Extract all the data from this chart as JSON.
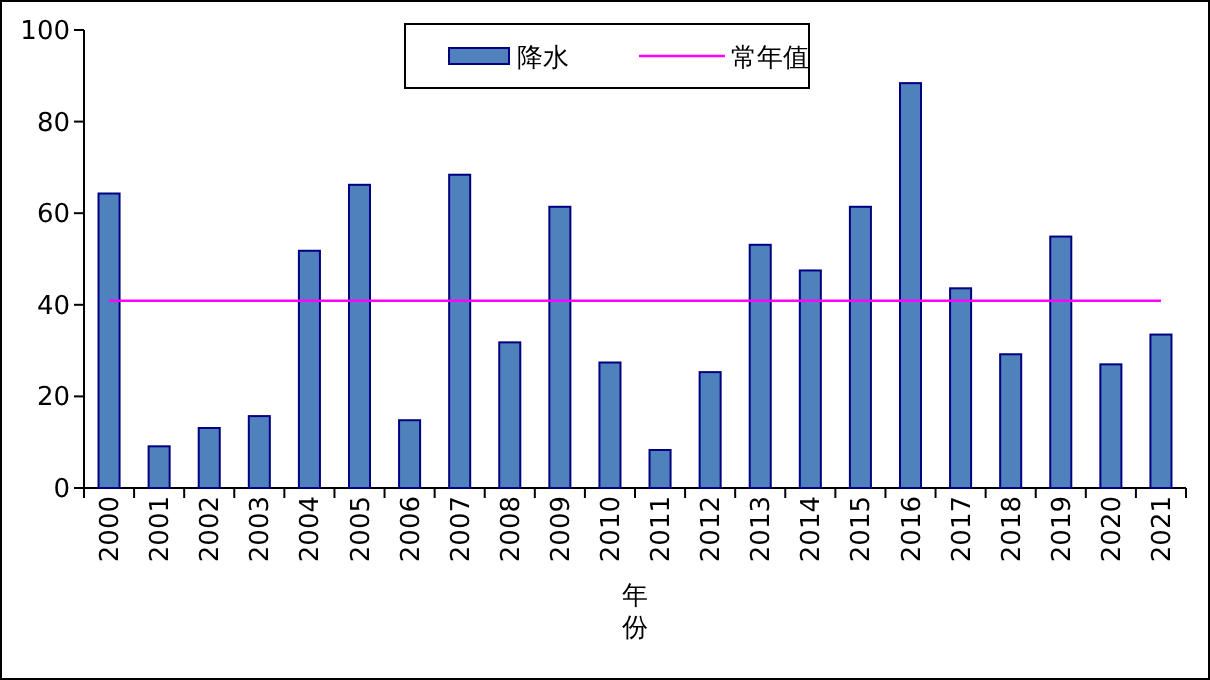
{
  "chart_data": {
    "type": "bar",
    "xlabel": "年份",
    "categories": [
      "2000",
      "2001",
      "2002",
      "2003",
      "2004",
      "2005",
      "2006",
      "2007",
      "2008",
      "2009",
      "2010",
      "2011",
      "2012",
      "2013",
      "2014",
      "2015",
      "2016",
      "2017",
      "2018",
      "2019",
      "2020",
      "2021"
    ],
    "series": [
      {
        "name": "降水",
        "color": "#4f81bd",
        "values": [
          64.3,
          9.1,
          13.1,
          15.7,
          51.8,
          66.2,
          14.8,
          68.4,
          31.8,
          61.4,
          27.4,
          8.3,
          25.3,
          53.1,
          47.5,
          61.4,
          88.4,
          43.6,
          29.2,
          54.9,
          27.0,
          33.5
        ]
      }
    ],
    "ref_lines": [
      {
        "axis": "y",
        "value": 40.9,
        "label": "常年值",
        "color": "#ff00ff"
      }
    ],
    "ylim": [
      0,
      100
    ],
    "yticks": [
      0,
      20,
      40,
      60,
      80,
      100
    ],
    "grid": false,
    "legend": "top"
  }
}
